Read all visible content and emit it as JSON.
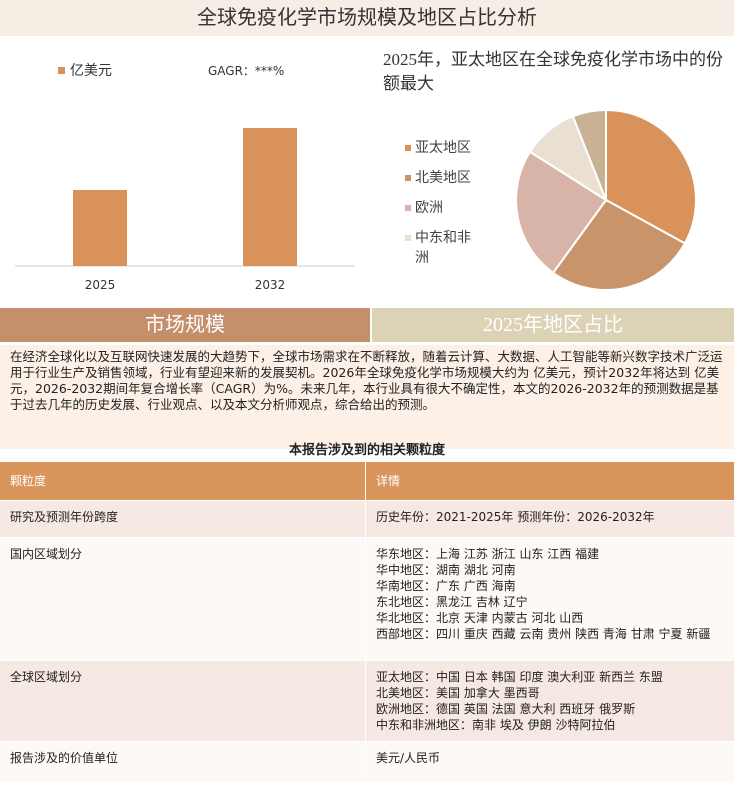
{
  "header": {
    "title": "全球免疫化学市场规模及地区占比分析"
  },
  "chart_data": [
    {
      "type": "bar",
      "categories": [
        "2025",
        "2032"
      ],
      "series": [
        {
          "name": "亿美元",
          "color": "#d9925a",
          "values": [
            76,
            138
          ]
        }
      ],
      "annotation": "GAGR：***%",
      "ylim": [
        0,
        150
      ]
    },
    {
      "type": "pie",
      "title": "2025年，亚太地区在全球免疫化学市场中的份额最大",
      "categories": [
        "亚太地区",
        "北美地区",
        "欧洲",
        "中东和非洲",
        null
      ],
      "values": [
        33,
        27,
        24,
        10,
        6
      ],
      "colors": [
        "#d9925a",
        "#c9946a",
        "#d8b4a8",
        "#eae0d2",
        "#c9b195"
      ]
    }
  ],
  "tabs": [
    "市场规模",
    "2025年地区占比"
  ],
  "paragraph": "在经济全球化以及互联网快速发展的大趋势下，全球市场需求在不断释放，随着云计算、大数据、人工智能等新兴数字技术广泛运用于行业生产及销售领域，行业有望迎来新的发展契机。2026年全球免疫化学市场规模大约为 亿美元，预计2032年将达到 亿美元，2026-2032期间年复合增长率（CAGR）为%。未来几年，本行业具有很大不确定性，本文的2026-2032年的预测数据是基于过去几年的历史发展、行业观点、以及本文分析师观点，综合给出的预测。",
  "table": {
    "title": "本报告涉及到的相关颗粒度",
    "header": [
      "颗粒度",
      "详情"
    ],
    "rows": [
      [
        "研究及预测年份跨度",
        [
          "历史年份：2021-2025年 预测年份：2026-2032年"
        ]
      ],
      [
        "国内区域划分",
        [
          "华东地区：上海  江苏  浙江  山东  江西  福建",
          "华中地区：湖南  湖北  河南",
          "华南地区：广东  广西  海南",
          "东北地区：黑龙江  吉林  辽宁",
          "华北地区：北京  天津  内蒙古  河北  山西",
          "西部地区：四川  重庆  西藏  云南  贵州  陕西  青海  甘肃  宁夏  新疆"
        ]
      ],
      [
        "全球区域划分",
        [
          "亚太地区：中国  日本  韩国  印度  澳大利亚  新西兰  东盟",
          "北美地区：美国  加拿大  墨西哥",
          "欧洲地区：德国  英国  法国  意大利  西班牙  俄罗斯",
          "中东和非洲地区：南非  埃及  伊朗  沙特阿拉伯"
        ]
      ],
      [
        "报告涉及的价值单位",
        [
          "美元/人民币"
        ]
      ]
    ]
  }
}
